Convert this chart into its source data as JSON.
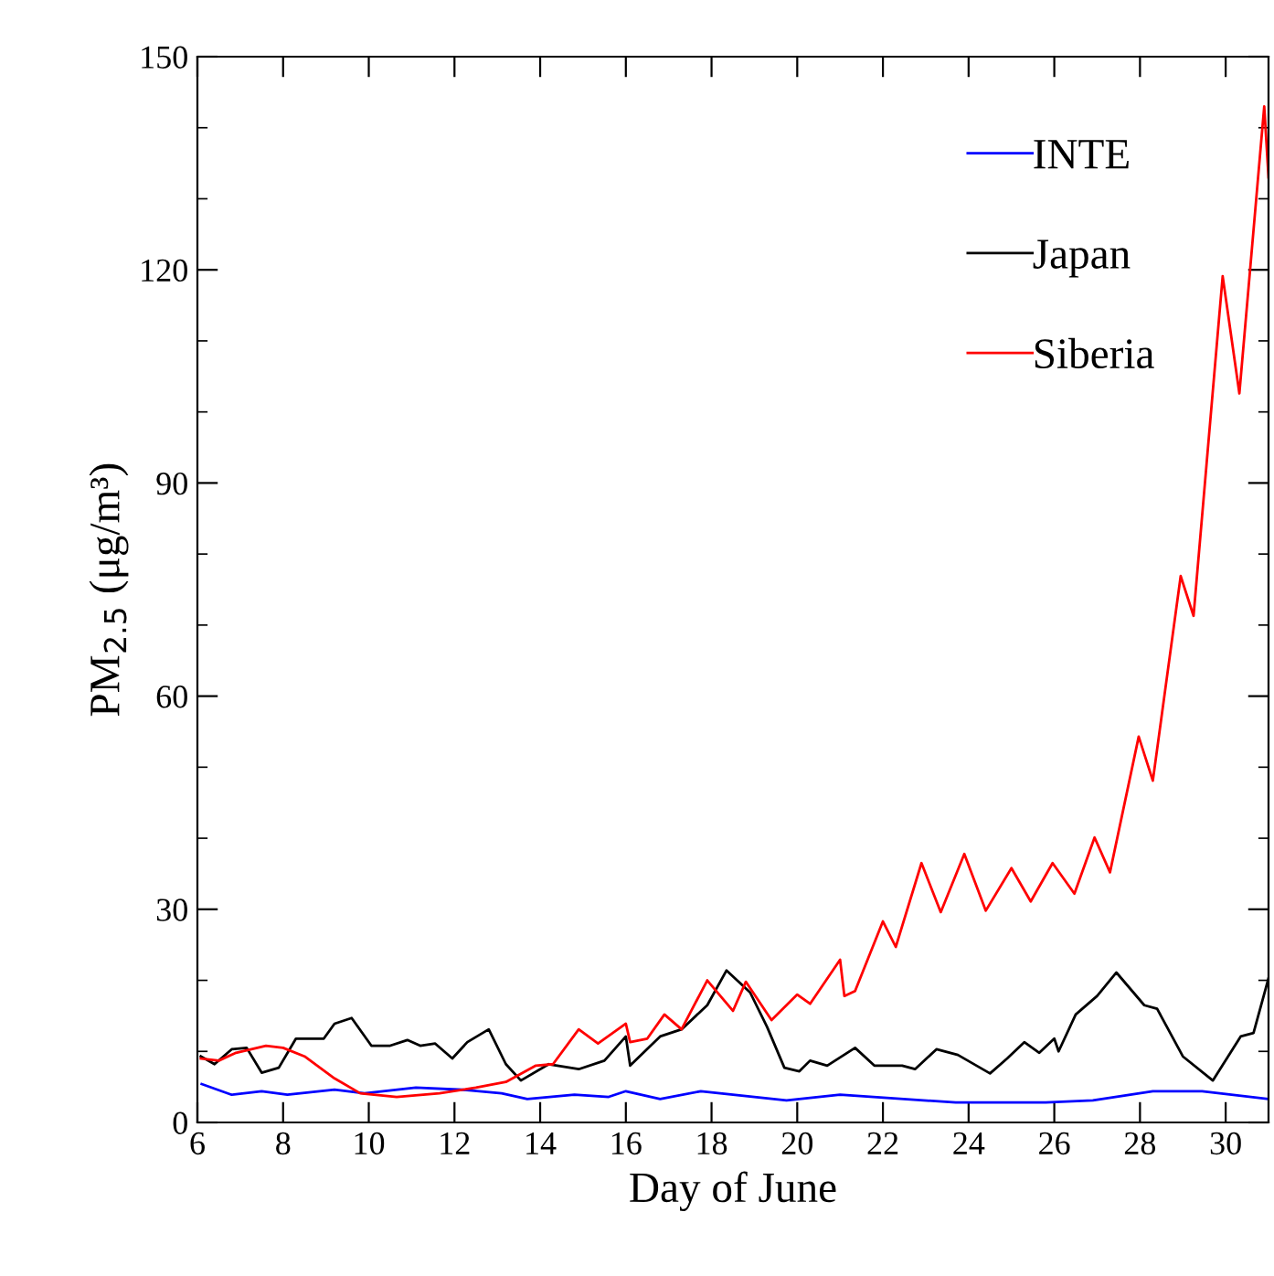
{
  "chart_data": {
    "type": "line",
    "xlabel": "Day of June",
    "ylabel": "PM$_{2.5}$ (μg/m³)",
    "xlim": [
      6,
      31
    ],
    "xticks": [
      6,
      8,
      10,
      12,
      14,
      16,
      18,
      20,
      22,
      24,
      26,
      28,
      30
    ],
    "ylim": [
      0,
      150
    ],
    "yticks": [
      0,
      {
        "value": 10,
        "label": null
      },
      {
        "value": 20,
        "label": null
      },
      30,
      {
        "value": 40,
        "label": null
      },
      {
        "value": 50,
        "label": null
      },
      60,
      {
        "value": 70,
        "label": null
      },
      {
        "value": 80,
        "label": null
      },
      90,
      {
        "value": 100,
        "label": null
      },
      {
        "value": 110,
        "label": null
      },
      120,
      {
        "value": 130,
        "label": null
      },
      {
        "value": 140,
        "label": null
      },
      150
    ],
    "grid": false,
    "legend": "top right",
    "marker": "none",
    "line_style": "solid",
    "series": [
      {
        "name": "INTE",
        "color": "#0000ff",
        "x": [
          6.1,
          6.8,
          7.5,
          8.1,
          9.2,
          9.9,
          11.1,
          12.2,
          13.1,
          13.7,
          14.8,
          15.6,
          16.0,
          16.8,
          17.75,
          19.75,
          21.0,
          23.7,
          25.8,
          26.9,
          28.3,
          29.45,
          31.0
        ],
        "values": [
          5.4,
          3.9,
          4.4,
          3.9,
          4.6,
          4.1,
          4.9,
          4.6,
          4.1,
          3.3,
          3.9,
          3.6,
          4.4,
          3.3,
          4.4,
          3.1,
          3.9,
          2.8,
          2.8,
          3.1,
          4.4,
          4.4,
          3.3
        ]
      },
      {
        "name": "Japan",
        "color": "#000000",
        "x": [
          6.08,
          6.4,
          6.8,
          7.15,
          7.5,
          7.9,
          8.3,
          8.95,
          9.2,
          9.6,
          10.06,
          10.5,
          10.9,
          11.2,
          11.55,
          11.95,
          12.3,
          12.8,
          13.2,
          13.55,
          14.2,
          14.9,
          15.5,
          16.0,
          16.1,
          16.8,
          17.3,
          17.9,
          18.35,
          18.9,
          19.3,
          19.7,
          20.05,
          20.3,
          20.7,
          21.35,
          21.8,
          22.45,
          22.75,
          23.25,
          23.75,
          24.5,
          24.9,
          25.3,
          25.65,
          26.0,
          26.1,
          26.5,
          27.0,
          27.45,
          28.1,
          28.4,
          29.0,
          29.7,
          30.35,
          30.65,
          31.0
        ],
        "values": [
          9.3,
          8.2,
          10.3,
          10.5,
          7.0,
          7.7,
          11.8,
          11.8,
          13.9,
          14.7,
          10.8,
          10.8,
          11.6,
          10.8,
          11.1,
          9.0,
          11.3,
          13.1,
          8.2,
          5.9,
          8.2,
          7.5,
          8.7,
          12.1,
          8.0,
          12.1,
          13.1,
          16.5,
          21.4,
          18.3,
          13.4,
          7.7,
          7.2,
          8.7,
          8.0,
          10.5,
          8.0,
          8.0,
          7.5,
          10.3,
          9.5,
          6.9,
          9.0,
          11.3,
          9.8,
          11.8,
          10.0,
          15.2,
          17.8,
          21.1,
          16.5,
          16.0,
          9.3,
          5.9,
          12.1,
          12.6,
          20.3
        ]
      },
      {
        "name": "Siberia",
        "color": "#ff0000",
        "x": [
          6.08,
          6.5,
          6.9,
          7.6,
          8.0,
          8.5,
          9.2,
          9.8,
          10.65,
          11.65,
          12.5,
          13.2,
          13.9,
          14.3,
          14.9,
          15.35,
          16.0,
          16.1,
          16.5,
          16.9,
          17.3,
          17.9,
          18.5,
          18.8,
          19.4,
          20.0,
          20.3,
          21.0,
          21.1,
          21.35,
          22.0,
          22.3,
          22.9,
          23.35,
          23.9,
          24.4,
          25.0,
          25.45,
          25.96,
          26.47,
          26.94,
          27.3,
          27.97,
          28.3,
          28.95,
          29.25,
          29.93,
          30.32,
          30.9,
          31.0
        ],
        "values": [
          9.0,
          8.7,
          9.8,
          10.8,
          10.5,
          9.3,
          6.2,
          4.1,
          3.6,
          4.1,
          4.9,
          5.7,
          8.0,
          8.2,
          13.1,
          11.1,
          13.9,
          11.3,
          11.8,
          15.2,
          13.1,
          20.0,
          15.7,
          19.8,
          14.4,
          18.0,
          16.7,
          22.9,
          17.8,
          18.5,
          28.3,
          24.7,
          36.5,
          29.6,
          37.8,
          29.8,
          35.8,
          31.1,
          36.5,
          32.2,
          40.1,
          35.2,
          54.3,
          48.1,
          76.9,
          71.3,
          119.1,
          102.6,
          143,
          133
        ]
      }
    ]
  }
}
